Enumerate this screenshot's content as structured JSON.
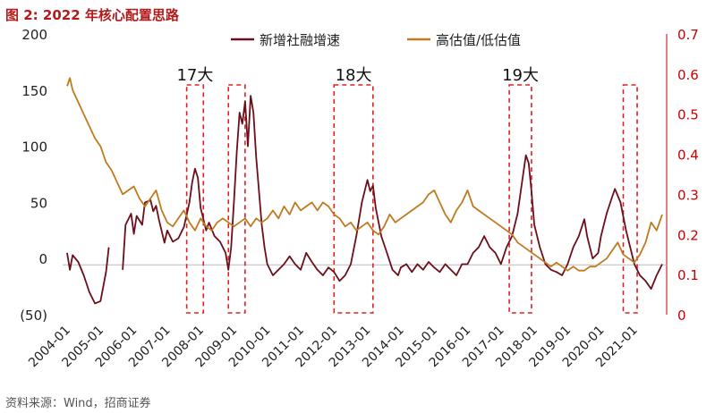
{
  "title": "图 2: 2022 年核心配置思路",
  "source": "资料来源：Wind，招商证券",
  "colors": {
    "series1": "#6b0f1a",
    "series2": "#c07a1f",
    "right_axis": "#cc0000",
    "annotation_box": "#e02020"
  },
  "chart_data": {
    "type": "line",
    "title": "",
    "left_axis": {
      "ylim": [
        -50,
        200
      ],
      "ticks": [
        -50,
        0,
        50,
        100,
        150,
        200
      ],
      "tick_labels": [
        "(50)",
        "0",
        "50",
        "100",
        "150",
        "200"
      ]
    },
    "right_axis": {
      "ylim": [
        0,
        0.7
      ],
      "ticks": [
        0,
        0.1,
        0.2,
        0.3,
        0.4,
        0.5,
        0.6,
        0.7
      ],
      "tick_labels": [
        "0",
        "0.1",
        "0.2",
        "0.3",
        "0.4",
        "0.5",
        "0.6",
        "0.7"
      ]
    },
    "x_ticks": [
      "2004-01",
      "2005-01",
      "2006-01",
      "2007-01",
      "2008-01",
      "2009-01",
      "2010-01",
      "2011-01",
      "2012-01",
      "2013-01",
      "2014-01",
      "2015-01",
      "2016-01",
      "2017-01",
      "2018-01",
      "2019-01",
      "2020-01",
      "2021-01"
    ],
    "legend_position": "top",
    "series": [
      {
        "name": "新增社融增速",
        "axis": "left",
        "points": [
          [
            "2004-01",
            5
          ],
          [
            "2004-02",
            -10
          ],
          [
            "2004-03",
            3
          ],
          [
            "2004-05",
            -3
          ],
          [
            "2004-07",
            -15
          ],
          [
            "2004-09",
            -30
          ],
          [
            "2004-11",
            -40
          ],
          [
            "2005-01",
            -38
          ],
          [
            "2005-02",
            -25
          ],
          [
            "2005-03",
            -12
          ],
          [
            "2005-04",
            10
          ],
          [
            "2005-09",
            -10
          ],
          [
            "2005-10",
            30
          ],
          [
            "2005-12",
            40
          ],
          [
            "2006-01",
            22
          ],
          [
            "2006-02",
            38
          ],
          [
            "2006-04",
            30
          ],
          [
            "2006-05",
            50
          ],
          [
            "2006-07",
            52
          ],
          [
            "2006-08",
            42
          ],
          [
            "2006-09",
            47
          ],
          [
            "2006-10",
            35
          ],
          [
            "2006-12",
            14
          ],
          [
            "2007-01",
            25
          ],
          [
            "2007-03",
            15
          ],
          [
            "2007-05",
            18
          ],
          [
            "2007-07",
            28
          ],
          [
            "2007-09",
            50
          ],
          [
            "2007-10",
            68
          ],
          [
            "2007-11",
            80
          ],
          [
            "2007-12",
            72
          ],
          [
            "2008-01",
            45
          ],
          [
            "2008-02",
            35
          ],
          [
            "2008-03",
            25
          ],
          [
            "2008-04",
            32
          ],
          [
            "2008-06",
            20
          ],
          [
            "2008-08",
            15
          ],
          [
            "2008-10",
            5
          ],
          [
            "2008-11",
            -10
          ],
          [
            "2008-12",
            10
          ],
          [
            "2009-01",
            50
          ],
          [
            "2009-02",
            95
          ],
          [
            "2009-03",
            130
          ],
          [
            "2009-04",
            120
          ],
          [
            "2009-05",
            140
          ],
          [
            "2009-06",
            100
          ],
          [
            "2009-07",
            145
          ],
          [
            "2009-08",
            130
          ],
          [
            "2009-09",
            90
          ],
          [
            "2009-10",
            60
          ],
          [
            "2009-11",
            30
          ],
          [
            "2009-12",
            10
          ],
          [
            "2010-01",
            -5
          ],
          [
            "2010-03",
            -15
          ],
          [
            "2010-05",
            -10
          ],
          [
            "2010-07",
            -5
          ],
          [
            "2010-09",
            2
          ],
          [
            "2010-11",
            -5
          ],
          [
            "2011-01",
            -10
          ],
          [
            "2011-03",
            5
          ],
          [
            "2011-05",
            -3
          ],
          [
            "2011-07",
            -10
          ],
          [
            "2011-09",
            -15
          ],
          [
            "2011-11",
            -8
          ],
          [
            "2012-01",
            -12
          ],
          [
            "2012-03",
            -20
          ],
          [
            "2012-05",
            -15
          ],
          [
            "2012-07",
            -5
          ],
          [
            "2012-09",
            20
          ],
          [
            "2012-11",
            50
          ],
          [
            "2013-01",
            70
          ],
          [
            "2013-02",
            60
          ],
          [
            "2013-03",
            65
          ],
          [
            "2013-04",
            45
          ],
          [
            "2013-06",
            20
          ],
          [
            "2013-08",
            5
          ],
          [
            "2013-10",
            -10
          ],
          [
            "2013-12",
            -15
          ],
          [
            "2014-01",
            -8
          ],
          [
            "2014-03",
            -5
          ],
          [
            "2014-05",
            -12
          ],
          [
            "2014-07",
            -5
          ],
          [
            "2014-09",
            -10
          ],
          [
            "2014-11",
            -3
          ],
          [
            "2015-01",
            -8
          ],
          [
            "2015-03",
            -12
          ],
          [
            "2015-05",
            -5
          ],
          [
            "2015-07",
            -10
          ],
          [
            "2015-09",
            -15
          ],
          [
            "2015-11",
            -5
          ],
          [
            "2016-01",
            -5
          ],
          [
            "2016-03",
            5
          ],
          [
            "2016-05",
            10
          ],
          [
            "2016-07",
            20
          ],
          [
            "2016-09",
            10
          ],
          [
            "2016-11",
            5
          ],
          [
            "2017-01",
            -5
          ],
          [
            "2017-03",
            10
          ],
          [
            "2017-05",
            20
          ],
          [
            "2017-07",
            40
          ],
          [
            "2017-09",
            75
          ],
          [
            "2017-10",
            92
          ],
          [
            "2017-11",
            85
          ],
          [
            "2017-12",
            60
          ],
          [
            "2018-01",
            30
          ],
          [
            "2018-03",
            10
          ],
          [
            "2018-05",
            -5
          ],
          [
            "2018-07",
            -10
          ],
          [
            "2018-09",
            -12
          ],
          [
            "2018-11",
            -15
          ],
          [
            "2019-01",
            -5
          ],
          [
            "2019-03",
            10
          ],
          [
            "2019-05",
            20
          ],
          [
            "2019-07",
            35
          ],
          [
            "2019-08",
            20
          ],
          [
            "2019-10",
            0
          ],
          [
            "2019-12",
            5
          ],
          [
            "2020-01",
            20
          ],
          [
            "2020-03",
            40
          ],
          [
            "2020-05",
            55
          ],
          [
            "2020-06",
            62
          ],
          [
            "2020-08",
            50
          ],
          [
            "2020-10",
            25
          ],
          [
            "2020-12",
            5
          ],
          [
            "2021-01",
            -5
          ],
          [
            "2021-03",
            -15
          ],
          [
            "2021-05",
            -20
          ],
          [
            "2021-07",
            -27
          ],
          [
            "2021-09",
            -15
          ],
          [
            "2021-11",
            -5
          ]
        ]
      },
      {
        "name": "高估值/低估值",
        "axis": "right",
        "points": [
          [
            "2004-01",
            0.57
          ],
          [
            "2004-02",
            0.59
          ],
          [
            "2004-03",
            0.56
          ],
          [
            "2004-05",
            0.53
          ],
          [
            "2004-07",
            0.5
          ],
          [
            "2004-09",
            0.47
          ],
          [
            "2004-11",
            0.44
          ],
          [
            "2005-01",
            0.42
          ],
          [
            "2005-03",
            0.38
          ],
          [
            "2005-05",
            0.36
          ],
          [
            "2005-07",
            0.33
          ],
          [
            "2005-09",
            0.3
          ],
          [
            "2005-11",
            0.31
          ],
          [
            "2006-01",
            0.32
          ],
          [
            "2006-03",
            0.29
          ],
          [
            "2006-05",
            0.27
          ],
          [
            "2006-07",
            0.29
          ],
          [
            "2006-09",
            0.31
          ],
          [
            "2006-11",
            0.26
          ],
          [
            "2007-01",
            0.23
          ],
          [
            "2007-03",
            0.22
          ],
          [
            "2007-05",
            0.24
          ],
          [
            "2007-07",
            0.26
          ],
          [
            "2007-09",
            0.23
          ],
          [
            "2007-11",
            0.21
          ],
          [
            "2008-01",
            0.24
          ],
          [
            "2008-03",
            0.22
          ],
          [
            "2008-05",
            0.21
          ],
          [
            "2008-07",
            0.23
          ],
          [
            "2008-09",
            0.24
          ],
          [
            "2008-11",
            0.23
          ],
          [
            "2009-01",
            0.22
          ],
          [
            "2009-03",
            0.23
          ],
          [
            "2009-05",
            0.24
          ],
          [
            "2009-07",
            0.22
          ],
          [
            "2009-09",
            0.24
          ],
          [
            "2009-11",
            0.23
          ],
          [
            "2010-01",
            0.24
          ],
          [
            "2010-03",
            0.26
          ],
          [
            "2010-05",
            0.24
          ],
          [
            "2010-07",
            0.27
          ],
          [
            "2010-09",
            0.25
          ],
          [
            "2010-11",
            0.28
          ],
          [
            "2011-01",
            0.26
          ],
          [
            "2011-03",
            0.27
          ],
          [
            "2011-05",
            0.28
          ],
          [
            "2011-07",
            0.26
          ],
          [
            "2011-09",
            0.28
          ],
          [
            "2011-11",
            0.27
          ],
          [
            "2012-01",
            0.25
          ],
          [
            "2012-03",
            0.24
          ],
          [
            "2012-05",
            0.22
          ],
          [
            "2012-07",
            0.23
          ],
          [
            "2012-09",
            0.21
          ],
          [
            "2012-11",
            0.22
          ],
          [
            "2013-01",
            0.23
          ],
          [
            "2013-03",
            0.21
          ],
          [
            "2013-05",
            0.2
          ],
          [
            "2013-07",
            0.22
          ],
          [
            "2013-09",
            0.25
          ],
          [
            "2013-11",
            0.23
          ],
          [
            "2014-01",
            0.24
          ],
          [
            "2014-03",
            0.25
          ],
          [
            "2014-05",
            0.26
          ],
          [
            "2014-07",
            0.27
          ],
          [
            "2014-09",
            0.28
          ],
          [
            "2014-11",
            0.3
          ],
          [
            "2015-01",
            0.31
          ],
          [
            "2015-03",
            0.28
          ],
          [
            "2015-05",
            0.25
          ],
          [
            "2015-07",
            0.23
          ],
          [
            "2015-09",
            0.26
          ],
          [
            "2015-11",
            0.28
          ],
          [
            "2016-01",
            0.31
          ],
          [
            "2016-03",
            0.27
          ],
          [
            "2016-05",
            0.26
          ],
          [
            "2016-07",
            0.25
          ],
          [
            "2016-09",
            0.24
          ],
          [
            "2016-11",
            0.23
          ],
          [
            "2017-01",
            0.22
          ],
          [
            "2017-03",
            0.21
          ],
          [
            "2017-05",
            0.2
          ],
          [
            "2017-07",
            0.18
          ],
          [
            "2017-09",
            0.17
          ],
          [
            "2017-11",
            0.16
          ],
          [
            "2018-01",
            0.15
          ],
          [
            "2018-03",
            0.14
          ],
          [
            "2018-05",
            0.13
          ],
          [
            "2018-07",
            0.12
          ],
          [
            "2018-09",
            0.13
          ],
          [
            "2018-11",
            0.12
          ],
          [
            "2019-01",
            0.11
          ],
          [
            "2019-03",
            0.12
          ],
          [
            "2019-05",
            0.11
          ],
          [
            "2019-07",
            0.11
          ],
          [
            "2019-09",
            0.12
          ],
          [
            "2019-11",
            0.12
          ],
          [
            "2020-01",
            0.13
          ],
          [
            "2020-03",
            0.14
          ],
          [
            "2020-05",
            0.16
          ],
          [
            "2020-07",
            0.18
          ],
          [
            "2020-09",
            0.15
          ],
          [
            "2020-11",
            0.14
          ],
          [
            "2021-01",
            0.13
          ],
          [
            "2021-03",
            0.15
          ],
          [
            "2021-05",
            0.18
          ],
          [
            "2021-07",
            0.23
          ],
          [
            "2021-09",
            0.21
          ],
          [
            "2021-11",
            0.25
          ]
        ]
      }
    ],
    "annotations": [
      {
        "label": "17大",
        "from": "2007-08",
        "to": "2008-02"
      },
      {
        "label": "",
        "from": "2008-11",
        "to": "2009-05"
      },
      {
        "label": "18大",
        "from": "2012-01",
        "to": "2013-03"
      },
      {
        "label": "19大",
        "from": "2017-04",
        "to": "2017-12"
      },
      {
        "label": "",
        "from": "2020-09",
        "to": "2021-02"
      }
    ]
  }
}
